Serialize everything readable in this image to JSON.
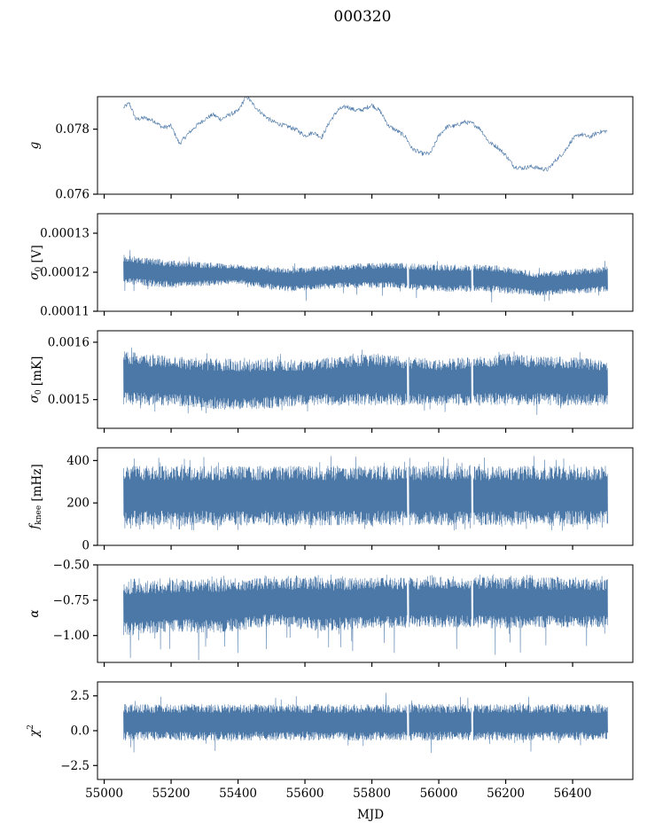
{
  "figure": {
    "title": "000320"
  },
  "colors": {
    "series": "#4c78a8"
  },
  "chart_data": [
    {
      "type": "line",
      "ylabel": "g",
      "ylabel_parts": [
        {
          "t": "g",
          "italic": true
        }
      ],
      "ylim": [
        0.076,
        0.079
      ],
      "yticks": [
        0.076,
        0.078
      ],
      "ytick_labels": [
        "0.076",
        "0.078"
      ],
      "xlim": [
        54980,
        56580
      ],
      "x_range": [
        55058,
        56505
      ],
      "style": "smooth",
      "series": [
        {
          "values": [
            [
              55058,
              0.07866
            ],
            [
              55075,
              0.0788
            ],
            [
              55095,
              0.0783
            ],
            [
              55120,
              0.07835
            ],
            [
              55150,
              0.07825
            ],
            [
              55175,
              0.07805
            ],
            [
              55200,
              0.0781
            ],
            [
              55225,
              0.07755
            ],
            [
              55250,
              0.07785
            ],
            [
              55275,
              0.0781
            ],
            [
              55300,
              0.0783
            ],
            [
              55325,
              0.07845
            ],
            [
              55350,
              0.0783
            ],
            [
              55375,
              0.07845
            ],
            [
              55400,
              0.07855
            ],
            [
              55425,
              0.07902
            ],
            [
              55450,
              0.0787
            ],
            [
              55475,
              0.07845
            ],
            [
              55500,
              0.07825
            ],
            [
              55525,
              0.07815
            ],
            [
              55550,
              0.07808
            ],
            [
              55575,
              0.07798
            ],
            [
              55600,
              0.0778
            ],
            [
              55625,
              0.0779
            ],
            [
              55650,
              0.07775
            ],
            [
              55675,
              0.07825
            ],
            [
              55700,
              0.0786
            ],
            [
              55725,
              0.0787
            ],
            [
              55750,
              0.07858
            ],
            [
              55775,
              0.0786
            ],
            [
              55800,
              0.07875
            ],
            [
              55825,
              0.07855
            ],
            [
              55850,
              0.0781
            ],
            [
              55875,
              0.07795
            ],
            [
              55900,
              0.07778
            ],
            [
              55920,
              0.0774
            ],
            [
              55950,
              0.07725
            ],
            [
              55975,
              0.07725
            ],
            [
              56000,
              0.0778
            ],
            [
              56025,
              0.07808
            ],
            [
              56050,
              0.0781
            ],
            [
              56075,
              0.07822
            ],
            [
              56100,
              0.07818
            ],
            [
              56125,
              0.078
            ],
            [
              56150,
              0.0776
            ],
            [
              56175,
              0.07745
            ],
            [
              56200,
              0.0772
            ],
            [
              56225,
              0.07685
            ],
            [
              56250,
              0.0768
            ],
            [
              56275,
              0.07685
            ],
            [
              56300,
              0.0768
            ],
            [
              56325,
              0.07675
            ],
            [
              56350,
              0.07705
            ],
            [
              56375,
              0.0773
            ],
            [
              56400,
              0.0777
            ],
            [
              56425,
              0.07785
            ],
            [
              56450,
              0.07775
            ],
            [
              56475,
              0.0779
            ],
            [
              56505,
              0.07795
            ]
          ]
        }
      ]
    },
    {
      "type": "line",
      "ylabel": "σ0 [V]",
      "ylabel_parts": [
        {
          "t": "σ",
          "italic": true
        },
        {
          "t": "0",
          "sub": true
        },
        {
          "t": " [V]"
        }
      ],
      "ylim": [
        0.00011,
        0.000135
      ],
      "yticks": [
        0.00011,
        0.00012,
        0.00013
      ],
      "ytick_labels": [
        "0.00011",
        "0.00012",
        "0.00013"
      ],
      "xlim": [
        54980,
        56580
      ],
      "x_range": [
        55058,
        56505
      ],
      "style": "dense",
      "gaps": [
        55908,
        56100
      ],
      "spike_rate": 0.01,
      "spike_down": 3e-06,
      "spike_up": 1.5e-06,
      "series": [
        {
          "lower": [
            [
              55058,
              0.000117
            ],
            [
              55200,
              0.000116
            ],
            [
              55400,
              0.000117
            ],
            [
              55550,
              0.000115
            ],
            [
              55700,
              0.000116
            ],
            [
              55850,
              0.000116
            ],
            [
              56000,
              0.000115
            ],
            [
              56150,
              0.000115
            ],
            [
              56300,
              0.000114
            ],
            [
              56505,
              0.000115
            ]
          ],
          "upper": [
            [
              55058,
              0.0001245
            ],
            [
              55200,
              0.000123
            ],
            [
              55400,
              0.000122
            ],
            [
              55550,
              0.000121
            ],
            [
              55700,
              0.000122
            ],
            [
              55850,
              0.0001225
            ],
            [
              56000,
              0.000122
            ],
            [
              56150,
              0.000122
            ],
            [
              56300,
              0.00012
            ],
            [
              56505,
              0.0001215
            ]
          ]
        }
      ]
    },
    {
      "type": "line",
      "ylabel": "σ0 [mK]",
      "ylabel_parts": [
        {
          "t": "σ",
          "italic": true
        },
        {
          "t": "0",
          "sub": true
        },
        {
          "t": " [mK]"
        }
      ],
      "ylim": [
        0.00145,
        0.00162
      ],
      "yticks": [
        0.0015,
        0.0016
      ],
      "ytick_labels": [
        "0.0015",
        "0.0016"
      ],
      "xlim": [
        54980,
        56580
      ],
      "x_range": [
        55058,
        56505
      ],
      "style": "dense",
      "gaps": [
        55908,
        56100
      ],
      "spike_rate": 0.015,
      "spike_down": 1.8e-05,
      "spike_up": 1e-05,
      "series": [
        {
          "lower": [
            [
              55058,
              0.00149
            ],
            [
              55200,
              0.00149
            ],
            [
              55400,
              0.00148
            ],
            [
              55600,
              0.00149
            ],
            [
              55800,
              0.00149
            ],
            [
              56000,
              0.00149
            ],
            [
              56200,
              0.00149
            ],
            [
              56505,
              0.00149
            ]
          ],
          "upper": [
            [
              55058,
              0.001585
            ],
            [
              55200,
              0.001575
            ],
            [
              55400,
              0.00157
            ],
            [
              55600,
              0.00157
            ],
            [
              55800,
              0.00158
            ],
            [
              56000,
              0.00157
            ],
            [
              56200,
              0.00158
            ],
            [
              56505,
              0.00157
            ]
          ]
        }
      ]
    },
    {
      "type": "line",
      "ylabel": "fknee [mHz]",
      "ylabel_parts": [
        {
          "t": "f",
          "italic": true
        },
        {
          "t": "knee",
          "sub": true
        },
        {
          "t": " [mHz]"
        }
      ],
      "ylim": [
        0,
        460
      ],
      "yticks": [
        0,
        200,
        400
      ],
      "ytick_labels": [
        "0",
        "200",
        "400"
      ],
      "xlim": [
        54980,
        56580
      ],
      "x_range": [
        55058,
        56505
      ],
      "style": "dense",
      "gaps": [
        55908,
        56100
      ],
      "spike_rate": 0.03,
      "spike_down": 25,
      "spike_up": 45,
      "series": [
        {
          "lower": [
            [
              55058,
              95
            ],
            [
              56505,
              95
            ]
          ],
          "upper": [
            [
              55058,
              375
            ],
            [
              56505,
              375
            ]
          ]
        }
      ]
    },
    {
      "type": "line",
      "ylabel": "α",
      "ylabel_parts": [
        {
          "t": "α",
          "italic": true
        }
      ],
      "ylim": [
        -1.19,
        -0.5
      ],
      "yticks": [
        -1.0,
        -0.75,
        -0.5
      ],
      "ytick_labels": [
        "−1.00",
        "−0.75",
        "−0.50"
      ],
      "xlim": [
        54980,
        56580
      ],
      "x_range": [
        55058,
        56505
      ],
      "style": "dense",
      "gaps": [
        55908,
        56100
      ],
      "spike_rate": 0.04,
      "spike_down": 0.2,
      "spike_up": 0.02,
      "series": [
        {
          "lower": [
            [
              55058,
              -1.0
            ],
            [
              55200,
              -0.97
            ],
            [
              55350,
              -0.98
            ],
            [
              55500,
              -0.93
            ],
            [
              55650,
              -0.97
            ],
            [
              55800,
              -0.95
            ],
            [
              56000,
              -0.94
            ],
            [
              56200,
              -0.95
            ],
            [
              56505,
              -0.94
            ]
          ],
          "upper": [
            [
              55058,
              -0.62
            ],
            [
              55300,
              -0.6
            ],
            [
              55600,
              -0.59
            ],
            [
              55900,
              -0.59
            ],
            [
              56200,
              -0.58
            ],
            [
              56505,
              -0.6
            ]
          ]
        }
      ]
    },
    {
      "type": "line",
      "ylabel": "χ2",
      "ylabel_parts": [
        {
          "t": "χ",
          "italic": true
        },
        {
          "t": "2",
          "sup": true
        }
      ],
      "ylim": [
        -3.5,
        3.5
      ],
      "yticks": [
        -2.5,
        0.0,
        2.5
      ],
      "ytick_labels": [
        "−2.5",
        "0.0",
        "2.5"
      ],
      "xlim": [
        54980,
        56580
      ],
      "x_range": [
        55058,
        56505
      ],
      "style": "dense",
      "gaps": [
        55908,
        56100
      ],
      "spike_rate": 0.015,
      "spike_down": 0.9,
      "spike_up": 0.9,
      "series": [
        {
          "lower": [
            [
              55058,
              -0.7
            ],
            [
              56505,
              -0.7
            ]
          ],
          "upper": [
            [
              55058,
              1.9
            ],
            [
              56505,
              1.9
            ]
          ]
        }
      ]
    }
  ],
  "x_axis": {
    "label": "MJD",
    "ticks": [
      55000,
      55200,
      55400,
      55600,
      55800,
      56000,
      56200,
      56400
    ],
    "tick_labels": [
      "55000",
      "55200",
      "55400",
      "55600",
      "55800",
      "56000",
      "56200",
      "56400"
    ]
  }
}
